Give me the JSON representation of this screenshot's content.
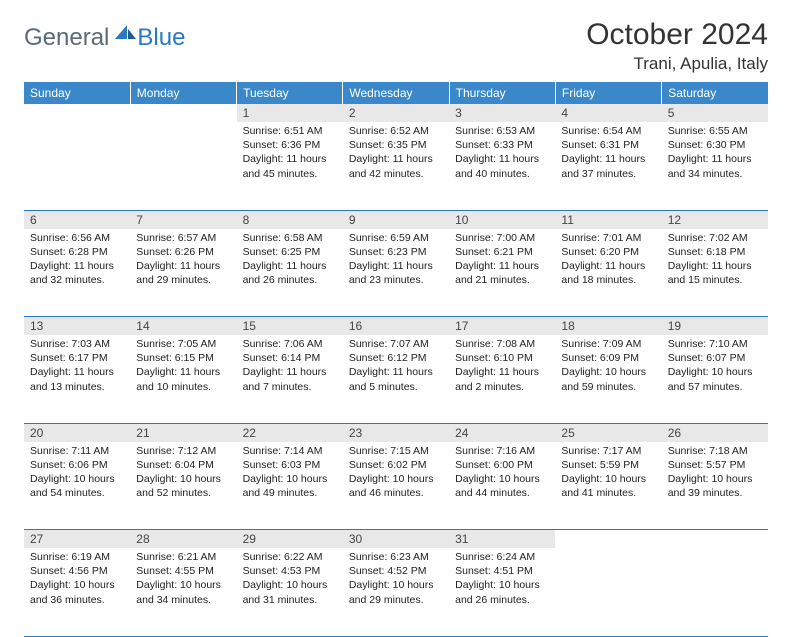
{
  "logo": {
    "general": "General",
    "blue": "Blue"
  },
  "title": "October 2024",
  "location": "Trani, Apulia, Italy",
  "colors": {
    "header_bg": "#3a88c9",
    "border": "#2b79c2",
    "daynum_bg": "#e8e8e8",
    "text": "#222222"
  },
  "day_headers": [
    "Sunday",
    "Monday",
    "Tuesday",
    "Wednesday",
    "Thursday",
    "Friday",
    "Saturday"
  ],
  "weeks": [
    [
      null,
      null,
      {
        "n": "1",
        "sunrise": "6:51 AM",
        "sunset": "6:36 PM",
        "dl": "11 hours and 45 minutes."
      },
      {
        "n": "2",
        "sunrise": "6:52 AM",
        "sunset": "6:35 PM",
        "dl": "11 hours and 42 minutes."
      },
      {
        "n": "3",
        "sunrise": "6:53 AM",
        "sunset": "6:33 PM",
        "dl": "11 hours and 40 minutes."
      },
      {
        "n": "4",
        "sunrise": "6:54 AM",
        "sunset": "6:31 PM",
        "dl": "11 hours and 37 minutes."
      },
      {
        "n": "5",
        "sunrise": "6:55 AM",
        "sunset": "6:30 PM",
        "dl": "11 hours and 34 minutes."
      }
    ],
    [
      {
        "n": "6",
        "sunrise": "6:56 AM",
        "sunset": "6:28 PM",
        "dl": "11 hours and 32 minutes."
      },
      {
        "n": "7",
        "sunrise": "6:57 AM",
        "sunset": "6:26 PM",
        "dl": "11 hours and 29 minutes."
      },
      {
        "n": "8",
        "sunrise": "6:58 AM",
        "sunset": "6:25 PM",
        "dl": "11 hours and 26 minutes."
      },
      {
        "n": "9",
        "sunrise": "6:59 AM",
        "sunset": "6:23 PM",
        "dl": "11 hours and 23 minutes."
      },
      {
        "n": "10",
        "sunrise": "7:00 AM",
        "sunset": "6:21 PM",
        "dl": "11 hours and 21 minutes."
      },
      {
        "n": "11",
        "sunrise": "7:01 AM",
        "sunset": "6:20 PM",
        "dl": "11 hours and 18 minutes."
      },
      {
        "n": "12",
        "sunrise": "7:02 AM",
        "sunset": "6:18 PM",
        "dl": "11 hours and 15 minutes."
      }
    ],
    [
      {
        "n": "13",
        "sunrise": "7:03 AM",
        "sunset": "6:17 PM",
        "dl": "11 hours and 13 minutes."
      },
      {
        "n": "14",
        "sunrise": "7:05 AM",
        "sunset": "6:15 PM",
        "dl": "11 hours and 10 minutes."
      },
      {
        "n": "15",
        "sunrise": "7:06 AM",
        "sunset": "6:14 PM",
        "dl": "11 hours and 7 minutes."
      },
      {
        "n": "16",
        "sunrise": "7:07 AM",
        "sunset": "6:12 PM",
        "dl": "11 hours and 5 minutes."
      },
      {
        "n": "17",
        "sunrise": "7:08 AM",
        "sunset": "6:10 PM",
        "dl": "11 hours and 2 minutes."
      },
      {
        "n": "18",
        "sunrise": "7:09 AM",
        "sunset": "6:09 PM",
        "dl": "10 hours and 59 minutes."
      },
      {
        "n": "19",
        "sunrise": "7:10 AM",
        "sunset": "6:07 PM",
        "dl": "10 hours and 57 minutes."
      }
    ],
    [
      {
        "n": "20",
        "sunrise": "7:11 AM",
        "sunset": "6:06 PM",
        "dl": "10 hours and 54 minutes."
      },
      {
        "n": "21",
        "sunrise": "7:12 AM",
        "sunset": "6:04 PM",
        "dl": "10 hours and 52 minutes."
      },
      {
        "n": "22",
        "sunrise": "7:14 AM",
        "sunset": "6:03 PM",
        "dl": "10 hours and 49 minutes."
      },
      {
        "n": "23",
        "sunrise": "7:15 AM",
        "sunset": "6:02 PM",
        "dl": "10 hours and 46 minutes."
      },
      {
        "n": "24",
        "sunrise": "7:16 AM",
        "sunset": "6:00 PM",
        "dl": "10 hours and 44 minutes."
      },
      {
        "n": "25",
        "sunrise": "7:17 AM",
        "sunset": "5:59 PM",
        "dl": "10 hours and 41 minutes."
      },
      {
        "n": "26",
        "sunrise": "7:18 AM",
        "sunset": "5:57 PM",
        "dl": "10 hours and 39 minutes."
      }
    ],
    [
      {
        "n": "27",
        "sunrise": "6:19 AM",
        "sunset": "4:56 PM",
        "dl": "10 hours and 36 minutes."
      },
      {
        "n": "28",
        "sunrise": "6:21 AM",
        "sunset": "4:55 PM",
        "dl": "10 hours and 34 minutes."
      },
      {
        "n": "29",
        "sunrise": "6:22 AM",
        "sunset": "4:53 PM",
        "dl": "10 hours and 31 minutes."
      },
      {
        "n": "30",
        "sunrise": "6:23 AM",
        "sunset": "4:52 PM",
        "dl": "10 hours and 29 minutes."
      },
      {
        "n": "31",
        "sunrise": "6:24 AM",
        "sunset": "4:51 PM",
        "dl": "10 hours and 26 minutes."
      },
      null,
      null
    ]
  ],
  "labels": {
    "sunrise": "Sunrise:",
    "sunset": "Sunset:",
    "daylight": "Daylight:"
  }
}
